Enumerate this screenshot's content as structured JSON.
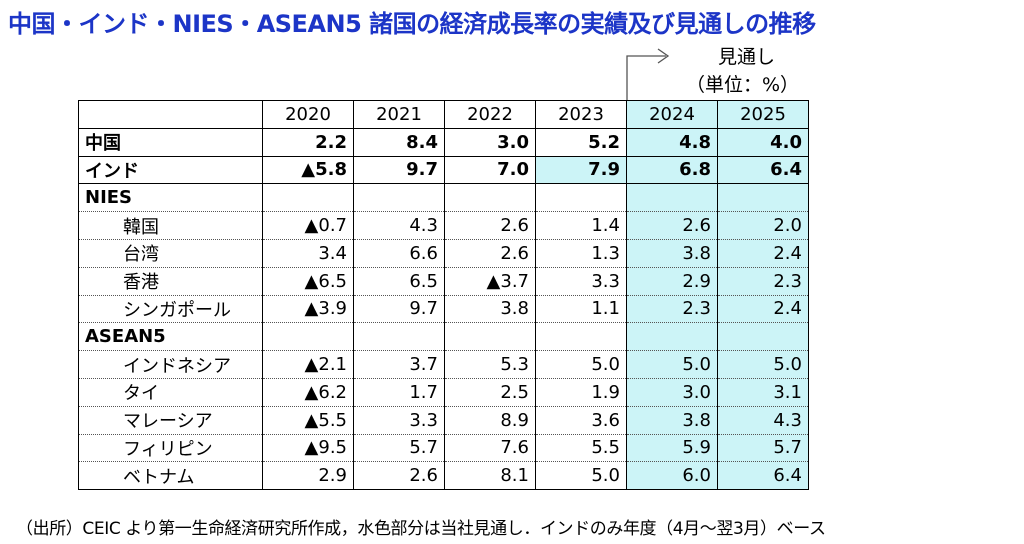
{
  "title": "中国・インド・NIES・ASEAN5 諸国の経済成長率の実績及び見通しの推移",
  "forecast_label": "見通し",
  "unit_label": "（単位：%）",
  "note": "（出所）CEIC より第一生命経済研究所作成，水色部分は当社見通し．インドのみ年度（4月～翌3月）ベース",
  "colors": {
    "title": "#1c35c7",
    "forecast_fill": "#ccf4f7"
  },
  "chart_data": {
    "type": "table",
    "columns": [
      "",
      "2020",
      "2021",
      "2022",
      "2023",
      "2024",
      "2025"
    ],
    "rows": [
      {
        "label": "中国",
        "style": "bold",
        "values": [
          "2.2",
          "8.4",
          "3.0",
          "5.2",
          "4.8",
          "4.0"
        ],
        "forecast_from": 4
      },
      {
        "label": "インド",
        "style": "bold",
        "values": [
          "▲5.8",
          "9.7",
          "7.0",
          "7.9",
          "6.8",
          "6.4"
        ],
        "forecast_from": 3
      },
      {
        "label": "NIES",
        "style": "group",
        "values": [
          "",
          "",
          "",
          "",
          "",
          ""
        ],
        "forecast_from": 4
      },
      {
        "label": "韓国",
        "style": "sub",
        "values": [
          "▲0.7",
          "4.3",
          "2.6",
          "1.4",
          "2.6",
          "2.0"
        ],
        "forecast_from": 4
      },
      {
        "label": "台湾",
        "style": "sub",
        "values": [
          "3.4",
          "6.6",
          "2.6",
          "1.3",
          "3.8",
          "2.4"
        ],
        "forecast_from": 4
      },
      {
        "label": "香港",
        "style": "sub",
        "values": [
          "▲6.5",
          "6.5",
          "▲3.7",
          "3.3",
          "2.9",
          "2.3"
        ],
        "forecast_from": 4
      },
      {
        "label": "シンガポール",
        "style": "sub",
        "values": [
          "▲3.9",
          "9.7",
          "3.8",
          "1.1",
          "2.3",
          "2.4"
        ],
        "forecast_from": 4
      },
      {
        "label": "ASEAN5",
        "style": "group",
        "values": [
          "",
          "",
          "",
          "",
          "",
          ""
        ],
        "forecast_from": 4
      },
      {
        "label": "インドネシア",
        "style": "sub",
        "values": [
          "▲2.1",
          "3.7",
          "5.3",
          "5.0",
          "5.0",
          "5.0"
        ],
        "forecast_from": 4
      },
      {
        "label": "タイ",
        "style": "sub",
        "values": [
          "▲6.2",
          "1.7",
          "2.5",
          "1.9",
          "3.0",
          "3.1"
        ],
        "forecast_from": 4
      },
      {
        "label": "マレーシア",
        "style": "sub",
        "values": [
          "▲5.5",
          "3.3",
          "8.9",
          "3.6",
          "3.8",
          "4.3"
        ],
        "forecast_from": 4
      },
      {
        "label": "フィリピン",
        "style": "sub",
        "values": [
          "▲9.5",
          "5.7",
          "7.6",
          "5.5",
          "5.9",
          "5.7"
        ],
        "forecast_from": 4
      },
      {
        "label": "ベトナム",
        "style": "sub",
        "values": [
          "2.9",
          "2.6",
          "8.1",
          "5.0",
          "6.0",
          "6.4"
        ],
        "forecast_from": 4
      }
    ]
  }
}
